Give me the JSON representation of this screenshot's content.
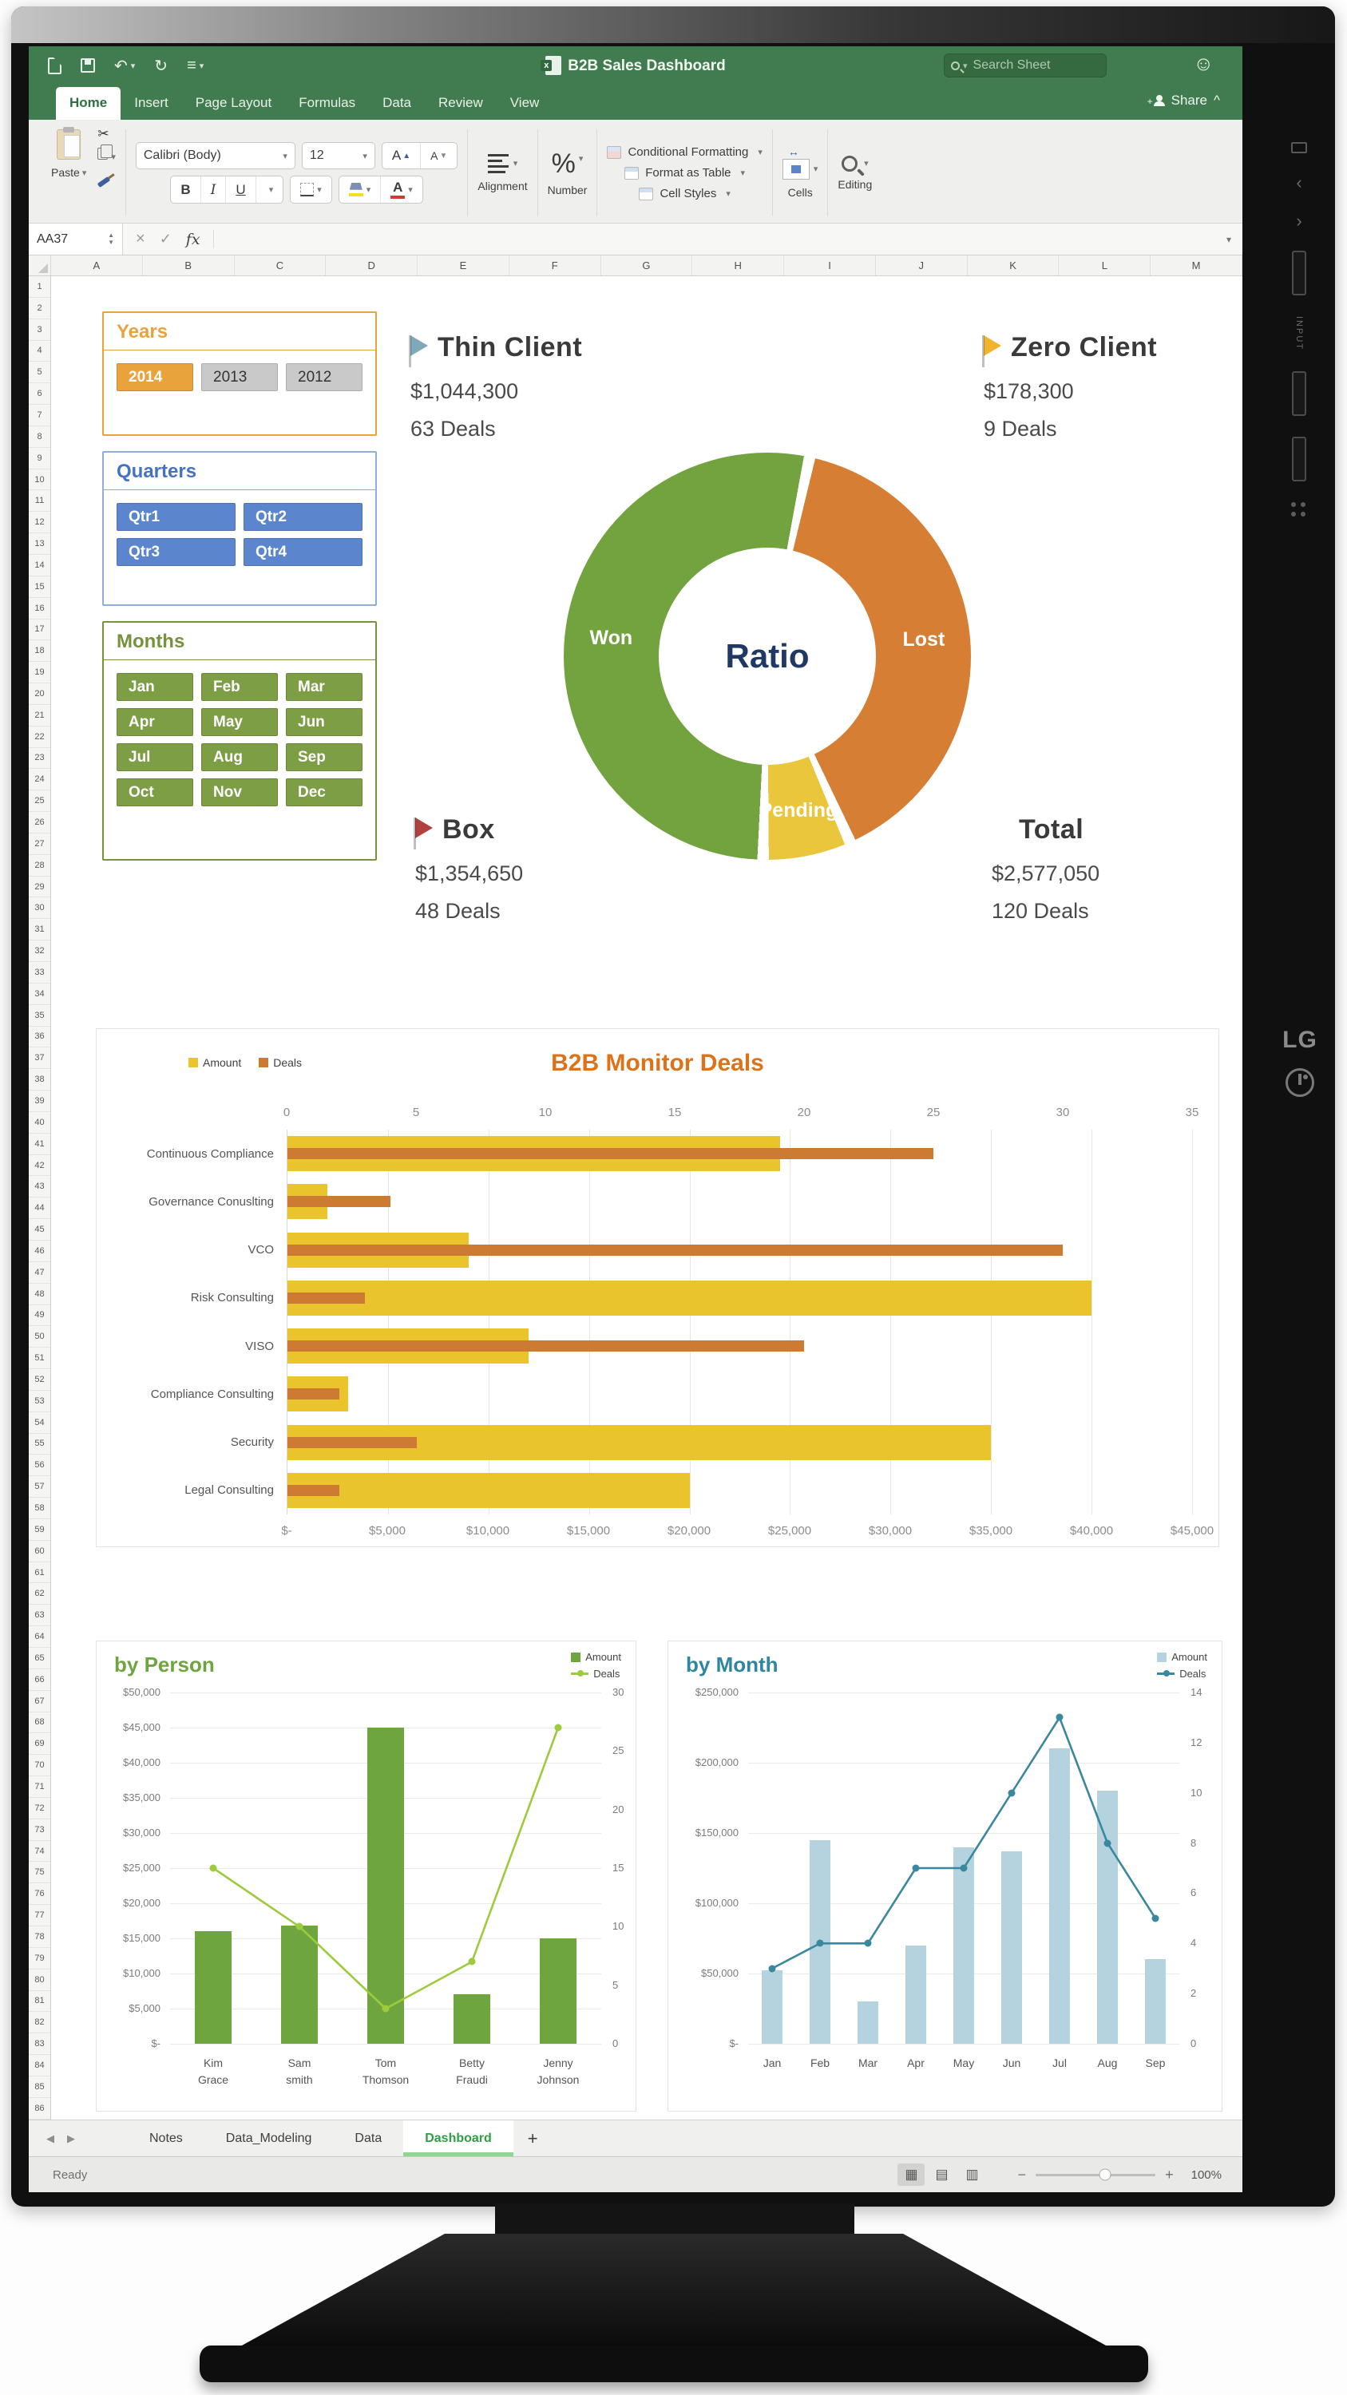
{
  "window": {
    "title": "B2B Sales Dashboard",
    "search_placeholder": "Search Sheet",
    "share_label": "Share",
    "status": "Ready",
    "zoom_level": "100%"
  },
  "ribbon_tabs": {
    "items": [
      "Home",
      "Insert",
      "Page Layout",
      "Formulas",
      "Data",
      "Review",
      "View"
    ],
    "active": "Home"
  },
  "ribbon": {
    "paste_label": "Paste",
    "font_name": "Calibri (Body)",
    "font_size": "12",
    "bold": "B",
    "italic": "I",
    "underline": "U",
    "alignment_label": "Alignment",
    "number_label": "Number",
    "number_glyph": "%",
    "styles": [
      "Conditional Formatting",
      "Format as Table",
      "Cell Styles"
    ],
    "cells_label": "Cells",
    "editing_label": "Editing"
  },
  "formula_bar": {
    "cell_ref": "AA37",
    "fx_label": "fx"
  },
  "grid": {
    "columns": [
      "A",
      "B",
      "C",
      "D",
      "E",
      "F",
      "G",
      "H",
      "I",
      "J",
      "K",
      "L",
      "M"
    ],
    "row_count": 86
  },
  "slicers": {
    "years": {
      "title": "Years",
      "accent": "#E8A33D",
      "title_color": "#E8A33D",
      "inactive_color": "#C9C9C9",
      "items": [
        {
          "label": "2014",
          "selected": true
        },
        {
          "label": "2013",
          "selected": false
        },
        {
          "label": "2012",
          "selected": false
        }
      ],
      "columns": 3
    },
    "quarters": {
      "title": "Quarters",
      "accent": "#8FAEDC",
      "title_color": "#4472C4",
      "button_color": "#5B86CE",
      "items": [
        {
          "label": "Qtr1",
          "selected": true
        },
        {
          "label": "Qtr2",
          "selected": true
        },
        {
          "label": "Qtr3",
          "selected": true
        },
        {
          "label": "Qtr4",
          "selected": true
        }
      ],
      "columns": 2
    },
    "months": {
      "title": "Months",
      "accent": "#76933C",
      "title_color": "#76933C",
      "button_color": "#7D9E45",
      "items": [
        {
          "label": "Jan",
          "selected": true
        },
        {
          "label": "Feb",
          "selected": true
        },
        {
          "label": "Mar",
          "selected": true
        },
        {
          "label": "Apr",
          "selected": true
        },
        {
          "label": "May",
          "selected": true
        },
        {
          "label": "Jun",
          "selected": true
        },
        {
          "label": "Jul",
          "selected": true
        },
        {
          "label": "Aug",
          "selected": true
        },
        {
          "label": "Sep",
          "selected": true
        },
        {
          "label": "Oct",
          "selected": true
        },
        {
          "label": "Nov",
          "selected": true
        },
        {
          "label": "Dec",
          "selected": true
        }
      ],
      "columns": 3
    }
  },
  "kpis": [
    {
      "name": "Thin Client",
      "flag_color": "#7FA8B8",
      "amount": "$1,044,300",
      "deals": "63 Deals"
    },
    {
      "name": "Zero Client",
      "flag_color": "#F2B32C",
      "amount": "$178,300",
      "deals": "9 Deals"
    },
    {
      "name": "Box",
      "flag_color": "#B0413E",
      "amount": "$1,354,650",
      "deals": "48 Deals"
    },
    {
      "name": "Total",
      "flag_color": null,
      "amount": "$2,577,050",
      "deals": "120 Deals"
    }
  ],
  "chart_data": [
    {
      "id": "ratio-donut",
      "type": "pie",
      "center_label": "Ratio",
      "center_color": "#1F3864",
      "start_deg": 12,
      "slices": [
        {
          "label": "Lost",
          "pct": 40,
          "color": "#D57E34"
        },
        {
          "label": "Pending",
          "pct": 7,
          "color": "#E9C63C"
        },
        {
          "label": "Won",
          "pct": 53,
          "color": "#72A33E"
        }
      ]
    },
    {
      "id": "b2b-monitor-deals",
      "type": "bar",
      "title": "B2B Monitor Deals",
      "title_color": "#DD7219",
      "categories": [
        "Continuous Compliance",
        "Governance Conuslting",
        "VCO",
        "Risk Consulting",
        "VISO",
        "Compliance Consulting",
        "Security",
        "Legal Consulting"
      ],
      "series": [
        {
          "name": "Amount",
          "color": "#EAC42C",
          "axis": "bottom",
          "values": [
            24500,
            2000,
            9000,
            40000,
            12000,
            3000,
            35000,
            20000
          ]
        },
        {
          "name": "Deals",
          "color": "#CD7B33",
          "axis": "top",
          "values": [
            25,
            4,
            30,
            3,
            20,
            2,
            5,
            2
          ]
        }
      ],
      "top_axis": {
        "ticks": [
          "0",
          "5",
          "10",
          "15",
          "20",
          "25",
          "30",
          "35"
        ],
        "max": 35
      },
      "bottom_axis": {
        "ticks": [
          "$-",
          "$5,000",
          "$10,000",
          "$15,000",
          "$20,000",
          "$25,000",
          "$30,000",
          "$35,000",
          "$40,000",
          "$45,000"
        ],
        "max": 45000
      }
    },
    {
      "id": "by-person",
      "type": "combo",
      "title": "by Person",
      "title_color": "#6FA53F",
      "categories": [
        [
          "Kim",
          "Grace"
        ],
        [
          "Sam",
          "smith"
        ],
        [
          "Tom",
          "Thomson"
        ],
        [
          "Betty",
          "Fraudi"
        ],
        [
          "Jenny",
          "Johnson"
        ]
      ],
      "series": [
        {
          "name": "Amount",
          "type": "bar",
          "color": "#6FA53F",
          "values": [
            16000,
            16800,
            45000,
            7000,
            15000
          ]
        },
        {
          "name": "Deals",
          "type": "line",
          "color": "#9CCB3B",
          "values": [
            15,
            10,
            3,
            7,
            27
          ]
        }
      ],
      "left_axis": {
        "ticks": [
          "$50,000",
          "$45,000",
          "$40,000",
          "$35,000",
          "$30,000",
          "$25,000",
          "$20,000",
          "$15,000",
          "$10,000",
          "$5,000",
          "$-"
        ],
        "max": 50000
      },
      "right_axis": {
        "ticks": [
          "30",
          "25",
          "20",
          "15",
          "10",
          "5",
          "0"
        ],
        "max": 30
      }
    },
    {
      "id": "by-month",
      "type": "combo",
      "title": "by Month",
      "title_color": "#2E86A0",
      "categories": [
        "Jan",
        "Feb",
        "Mar",
        "Apr",
        "May",
        "Jun",
        "Jul",
        "Aug",
        "Sep"
      ],
      "series": [
        {
          "name": "Amount",
          "type": "bar",
          "color": "#B5D3DE",
          "values": [
            52000,
            145000,
            30000,
            70000,
            140000,
            137000,
            210000,
            180000,
            60000
          ]
        },
        {
          "name": "Deals",
          "type": "line",
          "color": "#3A87A0",
          "values": [
            3,
            4,
            4,
            7,
            7,
            10,
            13,
            8,
            5
          ]
        }
      ],
      "left_axis": {
        "ticks": [
          "$250,000",
          "$200,000",
          "$150,000",
          "$100,000",
          "$50,000",
          "$-"
        ],
        "max": 250000
      },
      "right_axis": {
        "ticks": [
          "14",
          "12",
          "10",
          "8",
          "6",
          "4",
          "2",
          "0"
        ],
        "max": 14
      }
    }
  ],
  "sheet_tabs": {
    "items": [
      "Notes",
      "Data_Modeling",
      "Data",
      "Dashboard"
    ],
    "active": "Dashboard",
    "add": "+"
  },
  "monitor": {
    "brand": "LG",
    "side_label": "INPUT"
  }
}
